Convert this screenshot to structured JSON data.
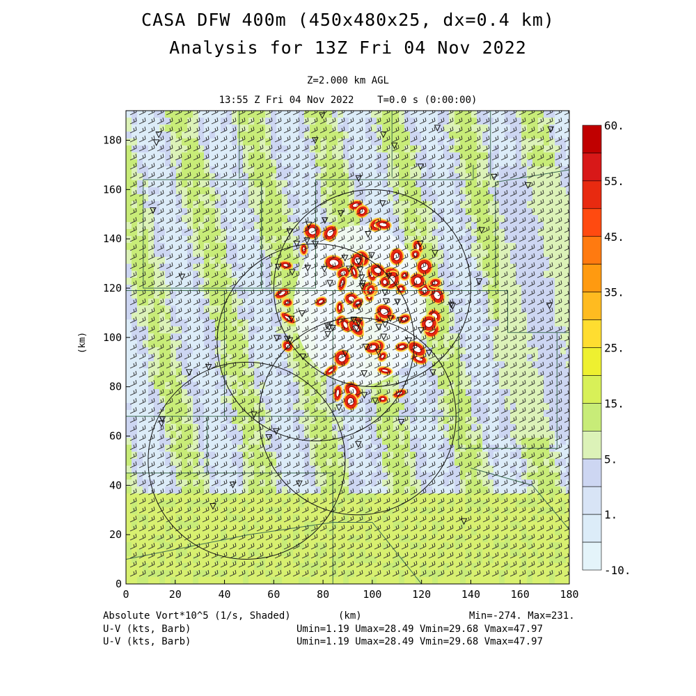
{
  "header": {
    "title_line1": "CASA DFW 400m (450x480x25, dx=0.4 km)",
    "title_line2": "Analysis for 13Z Fri 04 Nov 2022",
    "level": "Z=2.000 km AGL",
    "time": "13:55 Z Fri 04 Nov 2022    T=0.0 s (0:00:00)"
  },
  "footer": {
    "field": "Absolute Vort*10^5 (1/s, Shaded)",
    "xunit": "(km)",
    "minmax": "Min=-274. Max=231.",
    "wind1_label": "U-V (kts, Barb)",
    "wind1_stats": "Umin=1.19 Umax=28.49 Vmin=29.68 Vmax=47.97",
    "wind2_label": "U-V (kts, Barb)",
    "wind2_stats": "Umin=1.19 Umax=28.49 Vmin=29.68 Vmax=47.97"
  },
  "colorbar": {
    "labels": [
      "60.",
      "55.",
      "45.",
      "35.",
      "25.",
      "15.",
      "5.",
      "1.",
      "-10."
    ],
    "colors": [
      "#c00000",
      "#d81818",
      "#e82a10",
      "#ff4a10",
      "#ff7a10",
      "#ff9a10",
      "#ffbb20",
      "#ffdd30",
      "#eef030",
      "#d8f058",
      "#c8ec78",
      "#dcf2b8",
      "#cdd6f2",
      "#d8e4f6",
      "#dcecf8",
      "#e4f4fa"
    ]
  },
  "chart_data": {
    "type": "heatmap",
    "title": "CASA DFW 400m (450x480x25, dx=0.4 km) Analysis for 13Z Fri 04 Nov 2022",
    "field": "Absolute Vort*10^5 (1/s)",
    "xlabel": "(km)",
    "ylabel": "(km)",
    "xlim": [
      0,
      180
    ],
    "ylim": [
      0,
      192
    ],
    "xticks": [
      0,
      20,
      40,
      60,
      80,
      100,
      120,
      140,
      160,
      180
    ],
    "yticks": [
      0,
      20,
      40,
      60,
      80,
      100,
      120,
      140,
      160,
      180
    ],
    "field_min": -274,
    "field_max": 231,
    "wind": {
      "umin": 1.19,
      "umax": 28.49,
      "vmin": 29.68,
      "vmax": 47.97,
      "units": "kts"
    },
    "radar_rings": [
      {
        "center_km": [
          100,
          120
        ],
        "radius_km": 40
      },
      {
        "center_km": [
          77,
          98
        ],
        "radius_km": 40
      },
      {
        "center_km": [
          94,
          68
        ],
        "radius_km": 40
      },
      {
        "center_km": [
          49,
          50
        ],
        "radius_km": 40
      }
    ],
    "storm_core_km": [
      95,
      113
    ],
    "grid": false
  }
}
